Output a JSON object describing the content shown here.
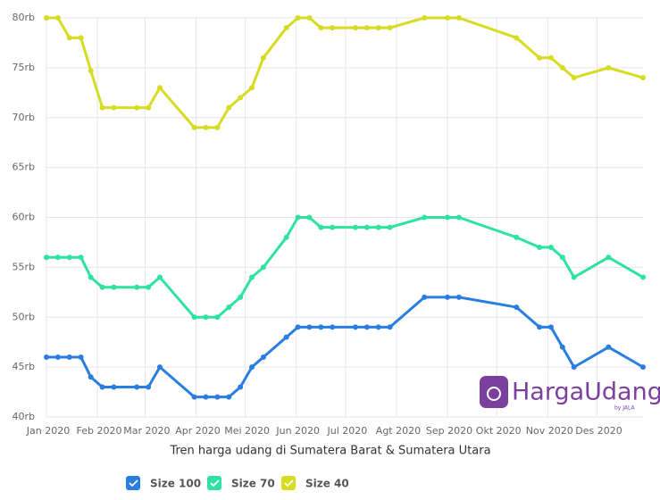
{
  "chart_data": {
    "type": "line",
    "title": "Tren harga udang di Sumatera Barat & Sumatera Utara",
    "watermark": {
      "brand": "HargaUdang",
      "byline": "by JALA"
    },
    "x": [
      0,
      7,
      14,
      21,
      27,
      34,
      41,
      55,
      62,
      69,
      90,
      97,
      104,
      111,
      118,
      125,
      132,
      146,
      153,
      160,
      167,
      174,
      188,
      195,
      202,
      209,
      230,
      244,
      251,
      286,
      300,
      307,
      314,
      321,
      342,
      363
    ],
    "xlim": [
      0,
      363
    ],
    "xticks": [
      {
        "value": 0,
        "label": "Jan 2020"
      },
      {
        "value": 31,
        "label": "Feb 2020"
      },
      {
        "value": 60,
        "label": "Mar 2020"
      },
      {
        "value": 91,
        "label": "Apr 2020"
      },
      {
        "value": 121,
        "label": "Mei 2020"
      },
      {
        "value": 152,
        "label": "Jun 2020"
      },
      {
        "value": 182,
        "label": "Jul 2020"
      },
      {
        "value": 213,
        "label": "Agt 2020"
      },
      {
        "value": 244,
        "label": "Sep 2020"
      },
      {
        "value": 274,
        "label": "Okt 2020"
      },
      {
        "value": 305,
        "label": "Nov 2020"
      },
      {
        "value": 335,
        "label": "Des 2020"
      }
    ],
    "ylim": [
      40,
      80
    ],
    "yticks": [
      {
        "value": 40,
        "label": "40rb"
      },
      {
        "value": 45,
        "label": "45rb"
      },
      {
        "value": 50,
        "label": "50rb"
      },
      {
        "value": 55,
        "label": "55rb"
      },
      {
        "value": 60,
        "label": "60rb"
      },
      {
        "value": 65,
        "label": "65rb"
      },
      {
        "value": 70,
        "label": "70rb"
      },
      {
        "value": 75,
        "label": "75rb"
      },
      {
        "value": 80,
        "label": "80rb"
      }
    ],
    "grid": true,
    "series": [
      {
        "name": "Size 100",
        "color": "#2a7de1",
        "values": [
          46,
          46,
          46,
          46,
          44,
          43,
          43,
          43,
          43,
          45,
          42,
          42,
          42,
          42,
          43,
          45,
          46,
          48,
          49,
          49,
          49,
          49,
          49,
          49,
          49,
          49,
          52,
          52,
          52,
          51,
          49,
          49,
          47,
          45,
          47,
          45
        ]
      },
      {
        "name": "Size 70",
        "color": "#2ee2a0",
        "values": [
          56,
          56,
          56,
          56,
          54,
          53,
          53,
          53,
          53,
          54,
          50,
          50,
          50,
          51,
          52,
          54,
          55,
          58,
          60,
          60,
          59,
          59,
          59,
          59,
          59,
          59,
          60,
          60,
          60,
          58,
          57,
          57,
          56,
          54,
          56,
          54
        ]
      },
      {
        "name": "Size 40",
        "color": "#d6dc22",
        "values": [
          80,
          80,
          78,
          78,
          74.7,
          71,
          71,
          71,
          71,
          73,
          69,
          69,
          69,
          71,
          72,
          73,
          76,
          79,
          80,
          80,
          79,
          79,
          79,
          79,
          79,
          79,
          80,
          80,
          80,
          78,
          76,
          76,
          75,
          74,
          75,
          74
        ]
      }
    ]
  }
}
